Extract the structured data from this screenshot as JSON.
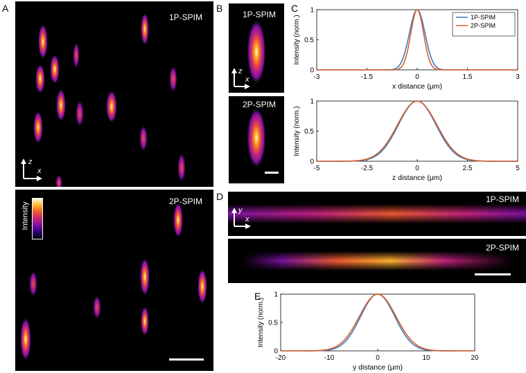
{
  "figure": {
    "panel_labels": {
      "A": "A",
      "B": "B",
      "C": "C",
      "D": "D",
      "E": "E"
    },
    "labels": {
      "one_p": "1P-SPIM",
      "two_p": "2P-SPIM",
      "intensity": "Intensity",
      "axis_z": "z",
      "axis_x": "x",
      "axis_y": "y"
    },
    "colormap": [
      "#000000",
      "#2a0570",
      "#7a12a0",
      "#c2227d",
      "#ee5a2f",
      "#fdb42e",
      "#fffbe0"
    ]
  },
  "chart_data": [
    {
      "id": "C-top",
      "type": "line",
      "title": "",
      "xlabel": "x distance (μm)",
      "ylabel": "Intensity (norm.)",
      "xlim": [
        -3,
        3
      ],
      "ylim": [
        0,
        1
      ],
      "xticks": [
        "-3",
        "-1.5",
        "0",
        "1.5",
        "3"
      ],
      "yticks": [
        "0",
        "0.5",
        "1"
      ],
      "legend_position": "top-right",
      "series": [
        {
          "name": "1P-SPIM",
          "color": "#3b78b8",
          "shape": "gaussian",
          "center": 0,
          "fwhm": 0.55
        },
        {
          "name": "2P-SPIM",
          "color": "#d95d2a",
          "shape": "gaussian",
          "center": 0,
          "fwhm": 0.45
        }
      ]
    },
    {
      "id": "C-bottom",
      "type": "line",
      "title": "",
      "xlabel": "z distance (μm)",
      "ylabel": "Intensity (norm.)",
      "xlim": [
        -5,
        5
      ],
      "ylim": [
        0,
        1
      ],
      "xticks": [
        "-5",
        "-2.5",
        "0",
        "2.5",
        "5"
      ],
      "yticks": [
        "0",
        "0.5",
        "1"
      ],
      "series": [
        {
          "color": "#3b78b8",
          "shape": "gaussian",
          "center": 0,
          "fwhm": 2.2
        },
        {
          "color": "#d95d2a",
          "shape": "gaussian",
          "center": 0,
          "fwhm": 2.3
        }
      ]
    },
    {
      "id": "E",
      "type": "line",
      "title": "",
      "xlabel": "y distance (μm)",
      "ylabel": "Intensity (norm.)",
      "xlim": [
        -20,
        20
      ],
      "ylim": [
        0,
        1
      ],
      "xticks": [
        "-20",
        "-10",
        "0",
        "10",
        "20"
      ],
      "yticks": [
        "0",
        "0.5",
        "1"
      ],
      "series": [
        {
          "color": "#3b78b8",
          "shape": "gaussian",
          "center": 0,
          "fwhm": 8.3
        },
        {
          "color": "#d95d2a",
          "shape": "gaussian",
          "center": 0,
          "fwhm": 8.9
        }
      ]
    }
  ]
}
